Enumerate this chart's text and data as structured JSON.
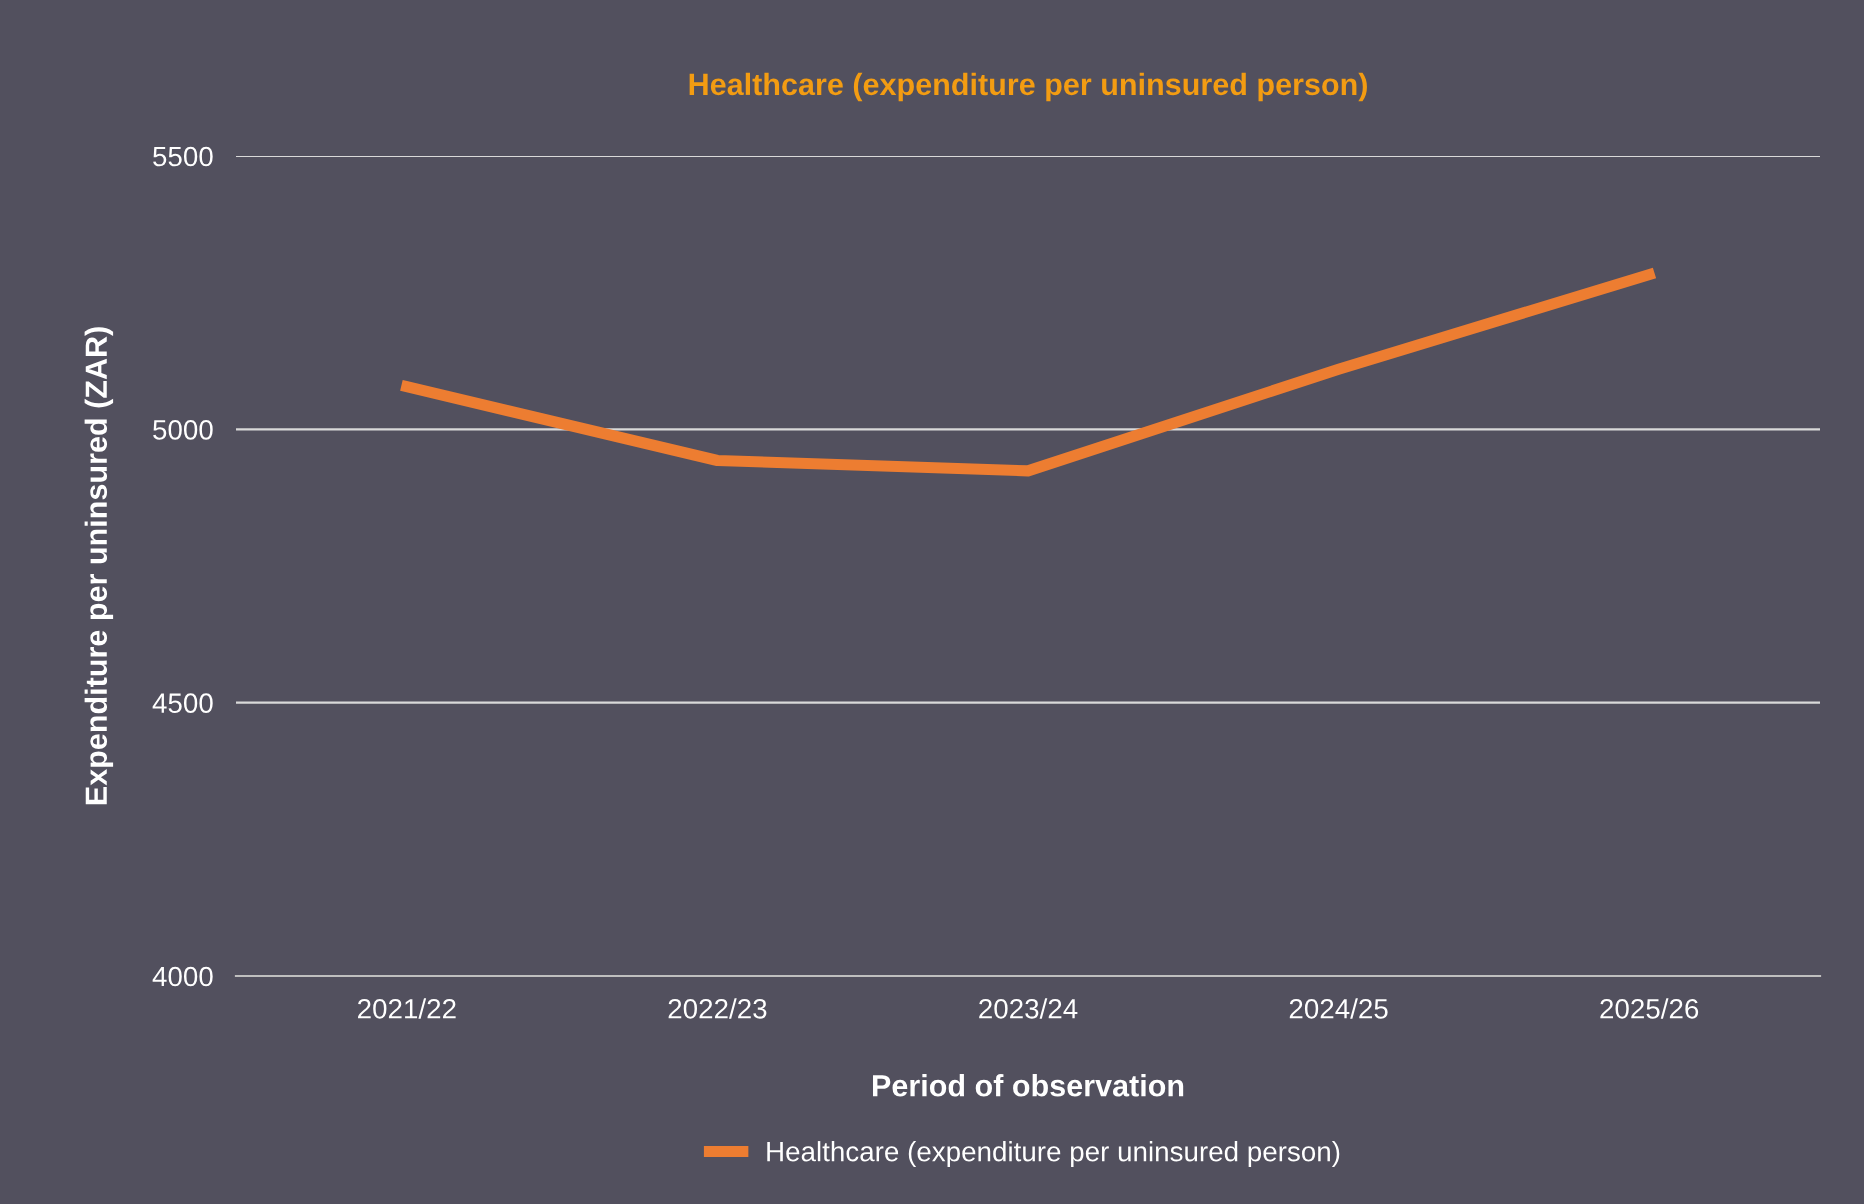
{
  "chart_data": {
    "type": "line",
    "title": "Healthcare (expenditure per uninsured person)",
    "xlabel": "Period of observation",
    "ylabel": "Expenditure per uninsured (ZAR)",
    "categories": [
      "2021/22",
      "2022/23",
      "2023/24",
      "2024/25",
      "2025/26"
    ],
    "series": [
      {
        "name": "Healthcare (expenditure per uninsured person)",
        "color": "#ed7d31",
        "values": [
          5078,
          4943,
          4924,
          5110,
          5283
        ]
      }
    ],
    "ylim": [
      4000,
      5500
    ],
    "yticks": [
      4000,
      4500,
      5000,
      5500
    ],
    "grid": "y",
    "legend": "bottom",
    "marker": "none",
    "line_style": "solid"
  }
}
